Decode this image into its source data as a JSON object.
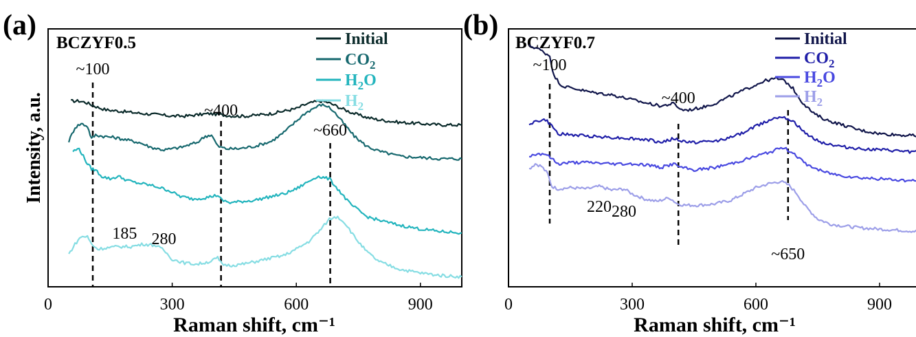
{
  "chart_data": [
    {
      "type": "line",
      "panel": "(a)",
      "sample": "BCZYF0.5",
      "xlabel": "Raman shift, cm⁻¹",
      "ylabel": "Intensity, a.u.",
      "xlim": [
        0,
        1000
      ],
      "xticks": [
        "0",
        "300",
        "600",
        "900"
      ],
      "legend_position": "top-right",
      "series": [
        {
          "name": "Initial",
          "sub": "",
          "color": "#0a2a2a",
          "x": [
            55,
            75,
            90,
            105,
            120,
            140,
            170,
            200,
            230,
            270,
            300,
            330,
            360,
            390,
            420,
            450,
            480,
            510,
            540,
            570,
            600,
            620,
            640,
            660,
            675,
            690,
            710,
            740,
            770,
            800,
            850,
            900,
            950,
            1000
          ],
          "y": [
            0.74,
            0.74,
            0.735,
            0.725,
            0.715,
            0.705,
            0.7,
            0.695,
            0.69,
            0.685,
            0.68,
            0.68,
            0.685,
            0.69,
            0.685,
            0.68,
            0.68,
            0.685,
            0.69,
            0.7,
            0.71,
            0.725,
            0.735,
            0.74,
            0.735,
            0.725,
            0.71,
            0.69,
            0.675,
            0.665,
            0.655,
            0.65,
            0.645,
            0.645
          ]
        },
        {
          "name": "CO",
          "sub": "2",
          "color": "#16686e",
          "x": [
            50,
            65,
            80,
            95,
            105,
            115,
            130,
            160,
            190,
            220,
            250,
            280,
            300,
            320,
            340,
            360,
            380,
            395,
            410,
            430,
            460,
            500,
            540,
            570,
            600,
            620,
            640,
            660,
            675,
            690,
            710,
            740,
            770,
            800,
            850,
            900,
            950,
            1000
          ],
          "y": [
            0.58,
            0.635,
            0.65,
            0.64,
            0.59,
            0.605,
            0.6,
            0.595,
            0.585,
            0.575,
            0.555,
            0.545,
            0.55,
            0.555,
            0.565,
            0.575,
            0.6,
            0.605,
            0.56,
            0.55,
            0.55,
            0.56,
            0.58,
            0.615,
            0.66,
            0.69,
            0.71,
            0.725,
            0.72,
            0.7,
            0.66,
            0.6,
            0.56,
            0.54,
            0.52,
            0.515,
            0.51,
            0.51
          ]
        },
        {
          "name": "H",
          "sub": "2",
          "suffix": "O",
          "color": "#22b4bd",
          "x": [
            60,
            75,
            85,
            95,
            105,
            115,
            130,
            150,
            170,
            190,
            210,
            230,
            260,
            290,
            320,
            350,
            380,
            410,
            420,
            440,
            470,
            500,
            540,
            570,
            600,
            630,
            650,
            665,
            680,
            700,
            730,
            770,
            800,
            850,
            900,
            950,
            1000
          ],
          "y": [
            0.54,
            0.55,
            0.52,
            0.49,
            0.47,
            0.465,
            0.44,
            0.43,
            0.44,
            0.425,
            0.415,
            0.41,
            0.4,
            0.385,
            0.36,
            0.35,
            0.355,
            0.365,
            0.345,
            0.335,
            0.34,
            0.345,
            0.36,
            0.37,
            0.39,
            0.42,
            0.44,
            0.435,
            0.43,
            0.39,
            0.33,
            0.28,
            0.265,
            0.245,
            0.23,
            0.22,
            0.215
          ]
        },
        {
          "name": "H",
          "sub": "2",
          "color": "#86dde3",
          "x": [
            50,
            65,
            80,
            95,
            105,
            120,
            140,
            170,
            200,
            230,
            260,
            280,
            300,
            330,
            360,
            390,
            410,
            420,
            440,
            470,
            500,
            540,
            570,
            600,
            630,
            660,
            680,
            700,
            720,
            740,
            770,
            800,
            850,
            900,
            950,
            1000
          ],
          "y": [
            0.13,
            0.17,
            0.2,
            0.2,
            0.17,
            0.15,
            0.155,
            0.16,
            0.16,
            0.17,
            0.165,
            0.145,
            0.11,
            0.095,
            0.09,
            0.1,
            0.115,
            0.09,
            0.085,
            0.09,
            0.1,
            0.115,
            0.125,
            0.15,
            0.18,
            0.23,
            0.27,
            0.28,
            0.25,
            0.2,
            0.14,
            0.1,
            0.07,
            0.055,
            0.045,
            0.04
          ]
        }
      ],
      "annotations": [
        {
          "text": "~100",
          "x": 108,
          "line": true
        },
        {
          "text": "~400",
          "x": 418,
          "line": true
        },
        {
          "text": "~660",
          "x": 682,
          "line": true
        },
        {
          "text": "185",
          "x": 185,
          "line": false
        },
        {
          "text": "280",
          "x": 280,
          "line": false
        }
      ]
    },
    {
      "type": "line",
      "panel": "(b)",
      "sample": "BCZYF0.7",
      "xlabel": "Raman shift, cm⁻¹",
      "xlim": [
        0,
        1000
      ],
      "xticks": [
        "0",
        "300",
        "600",
        "900"
      ],
      "legend_position": "top-right",
      "series": [
        {
          "name": "Initial",
          "sub": "",
          "color": "#10154a",
          "x": [
            50,
            70,
            90,
            100,
            110,
            130,
            160,
            200,
            250,
            300,
            340,
            370,
            400,
            420,
            440,
            470,
            500,
            540,
            580,
            620,
            650,
            670,
            690,
            710,
            740,
            770,
            800,
            850,
            900,
            950,
            1000
          ],
          "y": [
            0.96,
            0.95,
            0.93,
            0.92,
            0.84,
            0.8,
            0.79,
            0.775,
            0.765,
            0.745,
            0.73,
            0.72,
            0.73,
            0.705,
            0.705,
            0.715,
            0.73,
            0.76,
            0.79,
            0.82,
            0.83,
            0.82,
            0.79,
            0.74,
            0.69,
            0.665,
            0.65,
            0.625,
            0.61,
            0.605,
            0.6
          ]
        },
        {
          "name": "CO",
          "sub": "2",
          "color": "#1f1ea8",
          "x": [
            50,
            70,
            90,
            105,
            120,
            150,
            200,
            250,
            300,
            340,
            370,
            400,
            420,
            450,
            500,
            550,
            600,
            640,
            665,
            690,
            720,
            760,
            800,
            850,
            900,
            950,
            1000
          ],
          "y": [
            0.65,
            0.66,
            0.665,
            0.64,
            0.61,
            0.605,
            0.6,
            0.595,
            0.59,
            0.585,
            0.575,
            0.59,
            0.58,
            0.575,
            0.58,
            0.6,
            0.64,
            0.67,
            0.68,
            0.66,
            0.61,
            0.575,
            0.56,
            0.55,
            0.545,
            0.54,
            0.535
          ]
        },
        {
          "name": "H",
          "sub": "2",
          "suffix": "O",
          "color": "#4848e0",
          "x": [
            50,
            70,
            90,
            105,
            120,
            150,
            200,
            250,
            300,
            340,
            370,
            400,
            420,
            450,
            500,
            550,
            600,
            640,
            665,
            690,
            720,
            760,
            800,
            850,
            900,
            950,
            1000
          ],
          "y": [
            0.52,
            0.53,
            0.53,
            0.51,
            0.49,
            0.495,
            0.495,
            0.49,
            0.49,
            0.485,
            0.475,
            0.49,
            0.475,
            0.465,
            0.475,
            0.495,
            0.52,
            0.54,
            0.555,
            0.535,
            0.49,
            0.46,
            0.445,
            0.435,
            0.43,
            0.425,
            0.42
          ]
        },
        {
          "name": "H",
          "sub": "2",
          "color": "#9c9ee8",
          "x": [
            50,
            65,
            80,
            95,
            105,
            120,
            150,
            190,
            220,
            250,
            280,
            300,
            330,
            360,
            390,
            410,
            430,
            460,
            500,
            540,
            570,
            600,
            630,
            660,
            680,
            700,
            720,
            750,
            780,
            800,
            850,
            900,
            950,
            1000
          ],
          "y": [
            0.47,
            0.49,
            0.48,
            0.45,
            0.4,
            0.39,
            0.395,
            0.39,
            0.4,
            0.385,
            0.39,
            0.37,
            0.35,
            0.34,
            0.355,
            0.33,
            0.325,
            0.325,
            0.33,
            0.345,
            0.37,
            0.395,
            0.41,
            0.42,
            0.405,
            0.37,
            0.32,
            0.27,
            0.25,
            0.245,
            0.235,
            0.23,
            0.225,
            0.22
          ]
        }
      ],
      "annotations": [
        {
          "text": "~100",
          "x": 100,
          "line": true
        },
        {
          "text": "~400",
          "x": 412,
          "line": true
        },
        {
          "text": "~650",
          "x": 678,
          "line": true
        },
        {
          "text": "220",
          "x": 220,
          "line": false
        },
        {
          "text": "280",
          "x": 280,
          "line": false
        }
      ]
    }
  ]
}
